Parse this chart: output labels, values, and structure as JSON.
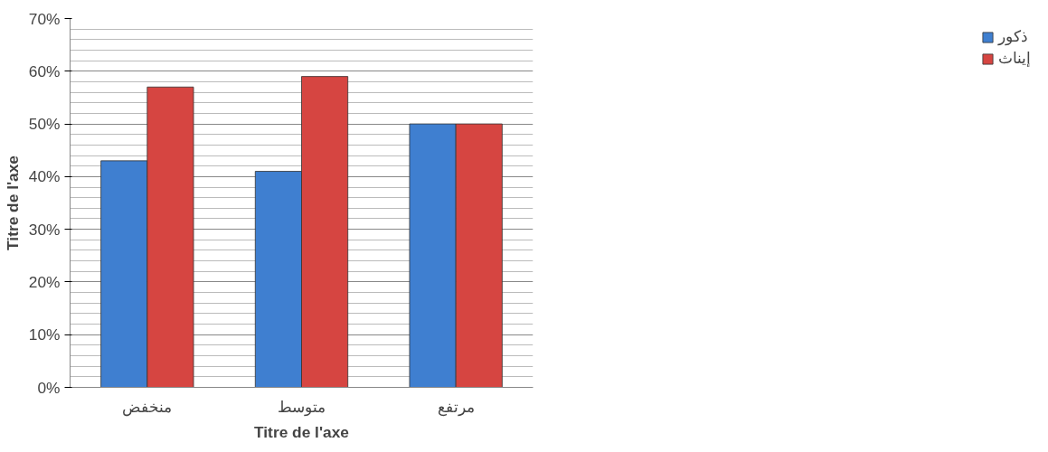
{
  "chart_data": {
    "type": "bar",
    "categories": [
      "منخفض",
      "متوسط",
      "مرتفع"
    ],
    "series": [
      {
        "name": "ذكور",
        "color": "#3f7fd0",
        "values": [
          43,
          41,
          50
        ]
      },
      {
        "name": "إيناث",
        "color": "#d64541",
        "values": [
          57,
          59,
          50
        ]
      }
    ],
    "xlabel": "Titre de l'axe",
    "ylabel": "Titre de l'axe",
    "ylim": [
      0,
      70
    ],
    "yticks": [
      {
        "value": 0,
        "label": "0%"
      },
      {
        "value": 10,
        "label": "10%"
      },
      {
        "value": 20,
        "label": "20%"
      },
      {
        "value": 30,
        "label": "30%"
      },
      {
        "value": 40,
        "label": "40%"
      },
      {
        "value": 50,
        "label": "50%"
      },
      {
        "value": 60,
        "label": "60%"
      },
      {
        "value": 70,
        "label": "70%"
      }
    ],
    "grid": "y",
    "legend": "right"
  }
}
